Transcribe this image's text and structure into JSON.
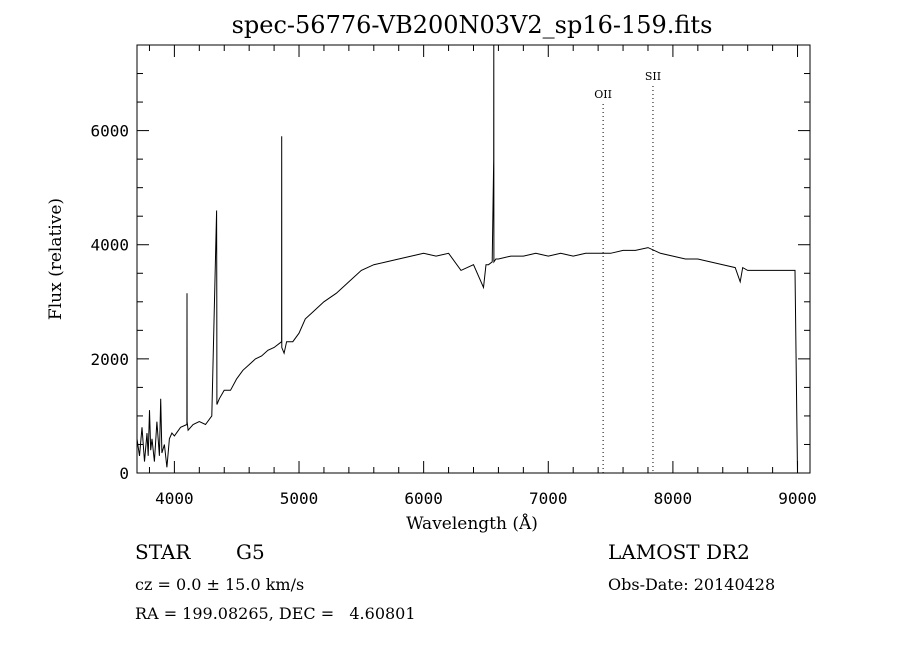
{
  "chart_data": {
    "type": "line",
    "title": "spec-56776-VB200N03V2_sp16-159.fits",
    "xlabel": "Wavelength (Å)",
    "ylabel": "Flux (relative)",
    "xlim": [
      3700,
      9100
    ],
    "ylim": [
      0,
      7500
    ],
    "x_ticks": [
      4000,
      5000,
      6000,
      7000,
      8000,
      9000
    ],
    "y_ticks": [
      0,
      2000,
      4000,
      6000
    ],
    "x_minor_step": 200,
    "y_minor_step": 500,
    "grid": false,
    "series": [
      {
        "color": "#000000",
        "x": [
          3700,
          3720,
          3740,
          3760,
          3780,
          3790,
          3800,
          3810,
          3820,
          3840,
          3860,
          3880,
          3890,
          3900,
          3920,
          3940,
          3960,
          3980,
          4000,
          4050,
          4100,
          4101,
          4102,
          4110,
          4150,
          4200,
          4250,
          4300,
          4339,
          4340,
          4341,
          4360,
          4400,
          4450,
          4500,
          4550,
          4600,
          4650,
          4700,
          4750,
          4800,
          4860,
          4861,
          4862,
          4880,
          4900,
          4950,
          5000,
          5050,
          5100,
          5150,
          5200,
          5300,
          5400,
          5500,
          5600,
          5700,
          5800,
          5900,
          6000,
          6100,
          6200,
          6300,
          6400,
          6480,
          6500,
          6520,
          6550,
          6562,
          6563,
          6564,
          6580,
          6600,
          6700,
          6800,
          6900,
          7000,
          7100,
          7200,
          7300,
          7400,
          7500,
          7600,
          7700,
          7800,
          7850,
          7900,
          8000,
          8100,
          8200,
          8300,
          8400,
          8500,
          8540,
          8560,
          8600,
          8700,
          8800,
          8900,
          8960,
          8980,
          8990,
          9000
        ],
        "y": [
          600,
          300,
          800,
          200,
          700,
          300,
          1100,
          400,
          600,
          200,
          900,
          300,
          1300,
          350,
          500,
          100,
          600,
          700,
          650,
          800,
          850,
          3150,
          900,
          750,
          850,
          900,
          850,
          1000,
          4600,
          3100,
          1200,
          1300,
          1450,
          1450,
          1650,
          1800,
          1900,
          2000,
          2050,
          2150,
          2200,
          2300,
          5900,
          2200,
          2100,
          2300,
          2300,
          2450,
          2700,
          2800,
          2900,
          3000,
          3150,
          3350,
          3550,
          3650,
          3700,
          3750,
          3800,
          3850,
          3800,
          3850,
          3550,
          3650,
          3250,
          3650,
          3650,
          3700,
          5500,
          7500,
          3700,
          3750,
          3750,
          3800,
          3800,
          3850,
          3800,
          3850,
          3800,
          3850,
          3850,
          3850,
          3900,
          3900,
          3950,
          3900,
          3850,
          3800,
          3750,
          3750,
          3700,
          3650,
          3600,
          3350,
          3600,
          3550,
          3550,
          3550,
          3550,
          3550,
          3550,
          1700,
          0
        ]
      }
    ],
    "annotations": [
      {
        "label": "OII",
        "x": 7440
      },
      {
        "label": "SII",
        "x": 7840
      }
    ]
  },
  "info": {
    "object_class": "STAR",
    "subclass": "G5",
    "survey": "LAMOST DR2",
    "redshift": "cz = 0.0 ± 15.0 km/s",
    "obs_date": "Obs-Date: 20140428",
    "coords": "RA = 199.08265, DEC =   4.60801"
  }
}
